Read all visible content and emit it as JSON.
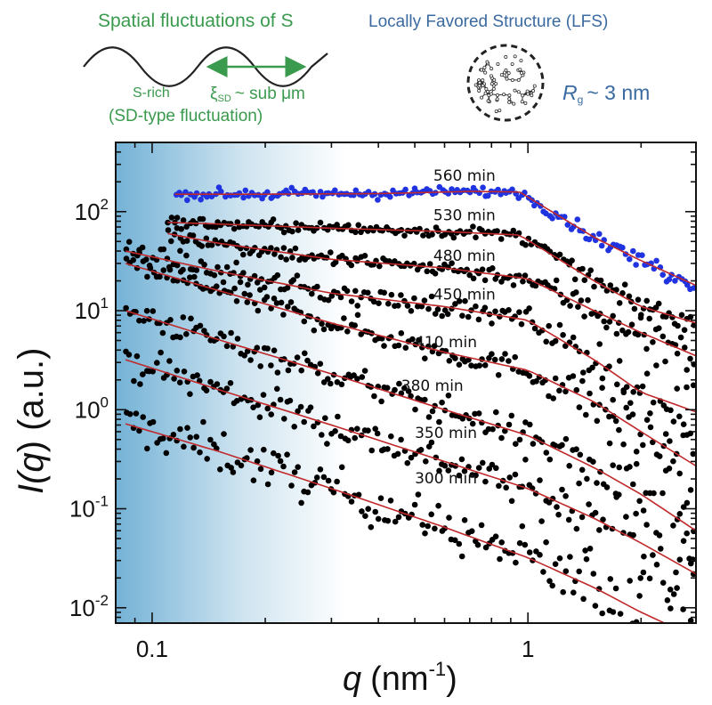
{
  "top_left": {
    "title": "Spatial fluctuations of S",
    "s_rich": "S-rich",
    "xi_symbol": "ξ",
    "xi_sub": "SD",
    "xi_value": "~ sub μm",
    "sd_label": "(SD-type fluctuation)"
  },
  "top_right": {
    "title": "Locally Favored Structure (LFS)",
    "rg_symbol": "R",
    "rg_sub": "g",
    "rg_value": "~ 3 nm"
  },
  "colors": {
    "green": "#3a9a4e",
    "blue_text": "#3a6aa0",
    "fit_line": "#c0282a",
    "points_black": "#000000",
    "points_blue": "#1f33e0",
    "gradient_start": "#74b2d6"
  },
  "chart_data": {
    "type": "scatter",
    "x_scale": "log",
    "y_scale": "log",
    "xlim": [
      0.08,
      2.8
    ],
    "ylim": [
      0.007,
      500
    ],
    "xlabel": {
      "symbol": "q",
      "unit": "(nm",
      "exp": "-1",
      "close": ")"
    },
    "ylabel": {
      "prefix": "I(",
      "symbol": "q",
      "suffix": ") (a.u.)"
    },
    "x_ticks": [
      {
        "value": 0.1,
        "label": "0.1"
      },
      {
        "value": 1,
        "label": "1"
      }
    ],
    "y_ticks": [
      {
        "value": 0.01,
        "base": "10",
        "exp": "-2"
      },
      {
        "value": 0.1,
        "base": "10",
        "exp": "-1"
      },
      {
        "value": 1,
        "base": "10",
        "exp": "0"
      },
      {
        "value": 10,
        "base": "10",
        "exp": "1"
      },
      {
        "value": 100,
        "base": "10",
        "exp": "2"
      }
    ],
    "series": [
      {
        "name": "300 min",
        "color": "#000000",
        "fit": [
          [
            0.085,
            0.72
          ],
          [
            0.15,
            0.38
          ],
          [
            0.3,
            0.16
          ],
          [
            0.6,
            0.065
          ],
          [
            1.0,
            0.032
          ],
          [
            1.5,
            0.016
          ],
          [
            2.0,
            0.009
          ],
          [
            2.8,
            0.005
          ]
        ],
        "x_range": [
          0.085,
          2.8
        ],
        "noise": 0.22,
        "label_at": [
          0.5,
          0.18
        ]
      },
      {
        "name": "350 min",
        "color": "#000000",
        "fit": [
          [
            0.085,
            3.2
          ],
          [
            0.15,
            1.6
          ],
          [
            0.3,
            0.7
          ],
          [
            0.6,
            0.3
          ],
          [
            1.0,
            0.16
          ],
          [
            1.5,
            0.08
          ],
          [
            2.0,
            0.045
          ],
          [
            2.8,
            0.022
          ]
        ],
        "x_range": [
          0.085,
          2.8
        ],
        "noise": 0.18,
        "label_at": [
          0.5,
          0.52
        ]
      },
      {
        "name": "380 min",
        "color": "#000000",
        "fit": [
          [
            0.085,
            10
          ],
          [
            0.15,
            5.1
          ],
          [
            0.3,
            2.3
          ],
          [
            0.6,
            1.0
          ],
          [
            1.0,
            0.55
          ],
          [
            1.5,
            0.26
          ],
          [
            2.0,
            0.14
          ],
          [
            2.8,
            0.06
          ]
        ],
        "x_range": [
          0.085,
          2.8
        ],
        "noise": 0.14,
        "label_at": [
          0.46,
          1.55
        ]
      },
      {
        "name": "410 min",
        "color": "#000000",
        "fit": [
          [
            0.085,
            30
          ],
          [
            0.15,
            16
          ],
          [
            0.3,
            7.5
          ],
          [
            0.6,
            3.8
          ],
          [
            1.0,
            2.5
          ],
          [
            1.5,
            1.2
          ],
          [
            2.0,
            0.6
          ],
          [
            2.8,
            0.27
          ]
        ],
        "x_range": [
          0.085,
          2.8
        ],
        "noise": 0.12,
        "label_at": [
          0.5,
          4.3
        ]
      },
      {
        "name": "450 min",
        "color": "#000000",
        "fit": [
          [
            0.085,
            40
          ],
          [
            0.15,
            25
          ],
          [
            0.3,
            15
          ],
          [
            0.6,
            11
          ],
          [
            1.0,
            8.0
          ],
          [
            1.5,
            3.2
          ],
          [
            2.0,
            1.5
          ],
          [
            2.8,
            0.95
          ]
        ],
        "x_range": [
          0.085,
          2.8
        ],
        "noise": 0.1,
        "label_at": [
          0.56,
          13
        ]
      },
      {
        "name": "480 min",
        "color": "#000000",
        "fit": [
          [
            0.11,
            60
          ],
          [
            0.15,
            48
          ],
          [
            0.3,
            33
          ],
          [
            0.6,
            27
          ],
          [
            1.0,
            21
          ],
          [
            1.5,
            10
          ],
          [
            2.0,
            6.0
          ],
          [
            2.8,
            3.5
          ]
        ],
        "x_range": [
          0.11,
          2.8
        ],
        "noise": 0.08,
        "label_at": [
          0.56,
          32
        ]
      },
      {
        "name": "530 min",
        "color": "#000000",
        "fit": [
          [
            0.11,
            78
          ],
          [
            0.15,
            75
          ],
          [
            0.3,
            68
          ],
          [
            0.6,
            63
          ],
          [
            0.95,
            58
          ],
          [
            1.5,
            20
          ],
          [
            2.0,
            11
          ],
          [
            2.8,
            7.5
          ]
        ],
        "x_range": [
          0.11,
          2.8
        ],
        "noise": 0.06,
        "label_at": [
          0.56,
          82
        ]
      },
      {
        "name": "560 min",
        "color": "#1f33e0",
        "fit": [
          [
            0.115,
            150
          ],
          [
            0.2,
            150
          ],
          [
            0.4,
            152
          ],
          [
            0.7,
            160
          ],
          [
            0.95,
            158
          ],
          [
            1.5,
            55
          ],
          [
            2.0,
            32
          ],
          [
            2.8,
            18
          ]
        ],
        "x_range": [
          0.115,
          2.8
        ],
        "noise": 0.05,
        "label_at": [
          0.56,
          205
        ]
      }
    ]
  }
}
